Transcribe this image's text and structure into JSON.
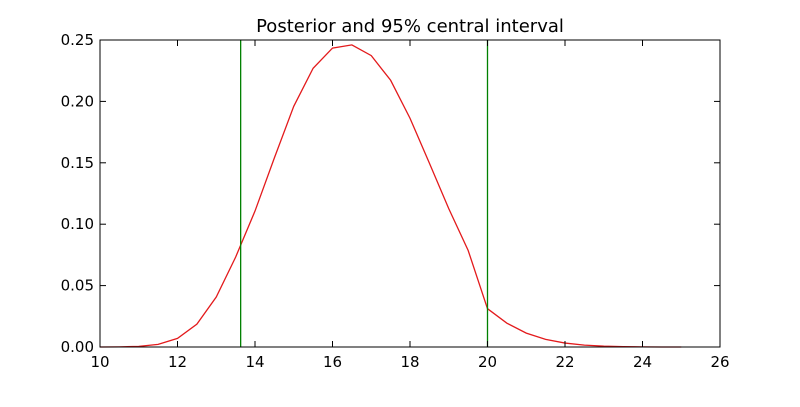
{
  "chart_data": {
    "type": "line",
    "title": "Posterior and 95% central interval",
    "xlabel": "",
    "ylabel": "",
    "xlim": [
      10,
      26
    ],
    "ylim": [
      0,
      0.25
    ],
    "x_ticks": [
      10,
      12,
      14,
      16,
      18,
      20,
      22,
      24,
      26
    ],
    "y_ticks": [
      0.0,
      0.05,
      0.1,
      0.15,
      0.2,
      0.25
    ],
    "x_tick_labels": [
      "10",
      "12",
      "14",
      "16",
      "18",
      "20",
      "22",
      "24",
      "26"
    ],
    "y_tick_labels": [
      "0.00",
      "0.05",
      "0.10",
      "0.15",
      "0.20",
      "0.25"
    ],
    "grid": false,
    "legend": "none",
    "series": [
      {
        "color": "#e31a1c",
        "x": [
          10.0,
          10.5,
          11.0,
          11.5,
          12.0,
          12.5,
          13.0,
          13.5,
          14.0,
          14.5,
          15.0,
          15.5,
          16.0,
          16.5,
          17.0,
          17.5,
          18.0,
          18.5,
          19.0,
          19.5,
          20.0,
          20.5,
          21.0,
          21.5,
          22.0,
          22.5,
          23.0,
          23.5,
          24.0,
          24.5,
          25.0
        ],
        "y": [
          0.0,
          0.0001,
          0.0005,
          0.0021,
          0.007,
          0.0186,
          0.0407,
          0.0732,
          0.1107,
          0.154,
          0.196,
          0.227,
          0.2434,
          0.246,
          0.2373,
          0.2172,
          0.1863,
          0.1497,
          0.1127,
          0.0787,
          0.0312,
          0.0194,
          0.0113,
          0.0062,
          0.0032,
          0.0015,
          0.0007,
          0.0003,
          0.0001,
          0.0,
          0.0
        ]
      }
    ],
    "interval": {
      "color": "#008000",
      "lower": 13.63,
      "upper": 20.0
    }
  }
}
